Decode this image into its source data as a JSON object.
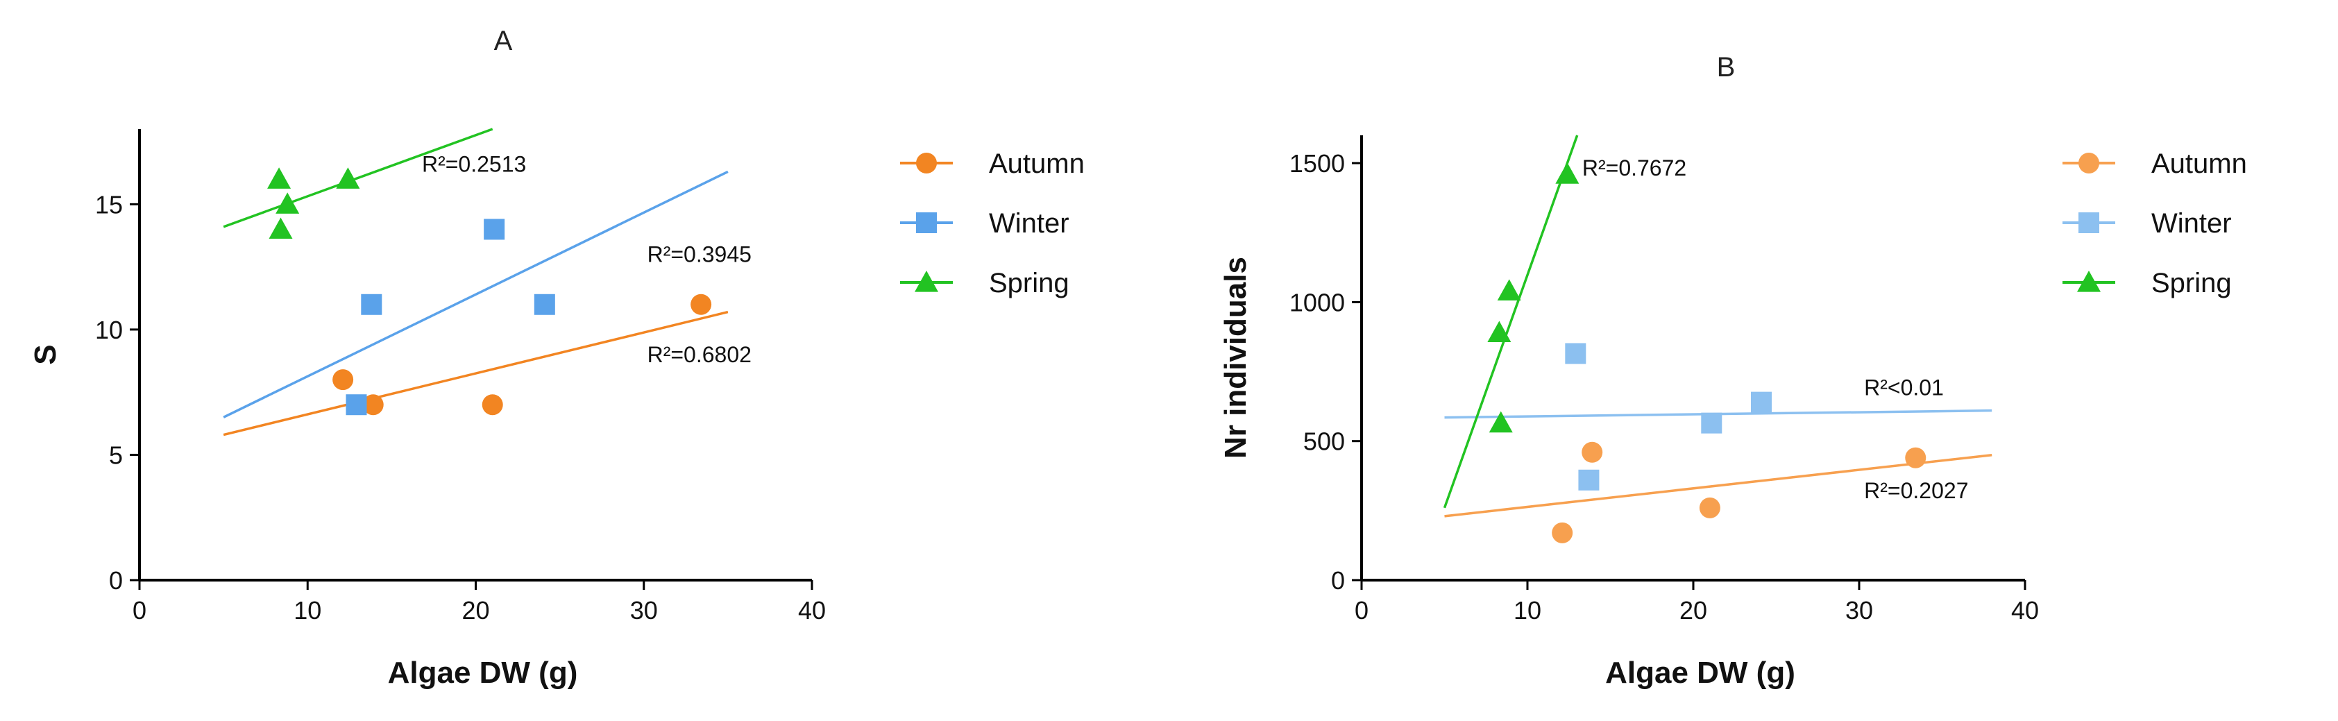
{
  "chart_data": [
    {
      "panel": "A",
      "type": "scatter",
      "title": "A",
      "xlabel": "Algae DW (g)",
      "ylabel": "S",
      "xlim": [
        0,
        40
      ],
      "ylim": [
        0,
        18
      ],
      "xticks": [
        0,
        10,
        20,
        30,
        40
      ],
      "yticks": [
        0,
        5,
        10,
        15
      ],
      "legend_position": "right",
      "series": [
        {
          "name": "Autumn",
          "color": "#f28522",
          "marker": "circle",
          "points": [
            [
              12.1,
              8
            ],
            [
              13.9,
              7
            ],
            [
              21,
              7
            ],
            [
              33.4,
              11
            ]
          ],
          "fit": {
            "x": [
              5,
              35
            ],
            "y": [
              5.8,
              10.7
            ]
          },
          "r2_label": "R²=0.6802",
          "r2_at": [
            30.2,
            8.7
          ]
        },
        {
          "name": "Winter",
          "color": "#5aa2ea",
          "marker": "square",
          "points": [
            [
              12.9,
              7
            ],
            [
              13.8,
              11
            ],
            [
              21.1,
              14
            ],
            [
              24.1,
              11
            ]
          ],
          "fit": {
            "x": [
              5,
              35
            ],
            "y": [
              6.5,
              16.3
            ]
          },
          "r2_label": "R²=0.3945",
          "r2_at": [
            30.2,
            12.7
          ]
        },
        {
          "name": "Spring",
          "color": "#22c322",
          "marker": "triangle",
          "points": [
            [
              8.3,
              16
            ],
            [
              8.4,
              14
            ],
            [
              8.8,
              15
            ],
            [
              12.4,
              16
            ]
          ],
          "fit": {
            "x": [
              5,
              21
            ],
            "y": [
              14.1,
              18
            ]
          },
          "r2_label": "R²=0.2513",
          "r2_at": [
            16.8,
            16.3
          ]
        }
      ]
    },
    {
      "panel": "B",
      "type": "scatter",
      "title": "B",
      "xlabel": "Algae DW (g)",
      "ylabel": "Nr individuals",
      "xlim": [
        0,
        40
      ],
      "ylim": [
        0,
        1600
      ],
      "xticks": [
        0,
        10,
        20,
        30,
        40
      ],
      "yticks": [
        0,
        500,
        1000,
        1500
      ],
      "legend_position": "right",
      "series": [
        {
          "name": "Autumn",
          "color": "#f7a04f",
          "marker": "circle",
          "points": [
            [
              12.1,
              170
            ],
            [
              13.9,
              460
            ],
            [
              21,
              260
            ],
            [
              33.4,
              440
            ]
          ],
          "fit": {
            "x": [
              5,
              38
            ],
            "y": [
              230,
              450
            ]
          },
          "r2_label": "R²=0.2027",
          "r2_at": [
            30.3,
            295
          ]
        },
        {
          "name": "Winter",
          "color": "#8cc0f0",
          "marker": "square",
          "points": [
            [
              12.9,
              815
            ],
            [
              13.7,
              360
            ],
            [
              21.1,
              565
            ],
            [
              24.1,
              640
            ]
          ],
          "fit": {
            "x": [
              5,
              38
            ],
            "y": [
              585,
              610
            ]
          },
          "r2_label": "R²<0.01",
          "r2_at": [
            30.3,
            665
          ]
        },
        {
          "name": "Spring",
          "color": "#22c322",
          "marker": "triangle",
          "points": [
            [
              8.3,
              890
            ],
            [
              8.4,
              565
            ],
            [
              8.9,
              1040
            ],
            [
              12.4,
              1460
            ]
          ],
          "fit": {
            "x": [
              5,
              13
            ],
            "y": [
              260,
              1600
            ]
          },
          "r2_label": "R²=0.7672",
          "r2_at": [
            13.3,
            1455
          ]
        }
      ]
    }
  ]
}
